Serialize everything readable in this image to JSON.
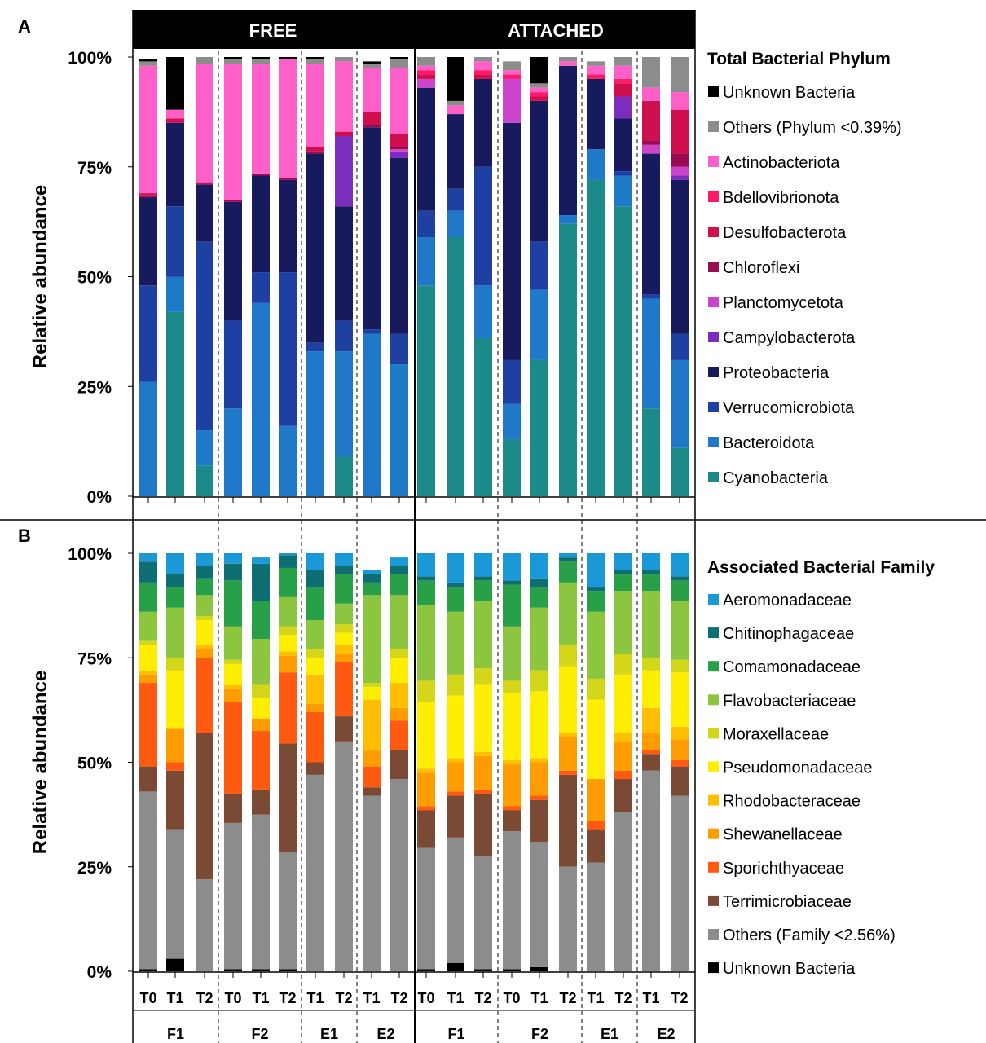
{
  "panels": {
    "a": "A",
    "b": "B"
  },
  "groups": {
    "free": "FREE",
    "attached": "ATTACHED"
  },
  "y_ticks": [
    "0%",
    "25%",
    "50%",
    "75%",
    "100%"
  ],
  "ylabel": "Relative abundance",
  "colors": {
    "unknown": "#000000",
    "others": "#8c8c8c",
    "actino": "#ff5fc8",
    "bdello": "#ff1a66",
    "desulfo": "#d0104e",
    "chloro": "#9b0a52",
    "plancto": "#cc44cc",
    "campylo": "#7b2dbe",
    "proteo": "#181a5e",
    "verruco": "#1e40a3",
    "bactero": "#1f78c8",
    "cyano": "#1b8a88",
    "aeromon": "#1a99d6",
    "chitino": "#0e6e72",
    "comamon": "#27a048",
    "flavo": "#8cc63f",
    "moraxell": "#d4d61a",
    "pseudomon": "#ffee00",
    "rhodobac": "#ffbf00",
    "shewan": "#ff9c00",
    "sporich": "#ff5a10",
    "terrimic": "#7a4a35"
  },
  "chart_data": [
    {
      "type": "bar",
      "stacked": true,
      "panel": "A",
      "legend_title": "Total Bacterial Phylum",
      "ylabel": "Relative abundance",
      "ylim": [
        0,
        100
      ],
      "groups": [
        {
          "name": "FREE",
          "subgroups": [
            "F1",
            "F2",
            "E1",
            "E2"
          ]
        },
        {
          "name": "ATTACHED",
          "subgroups": [
            "F1",
            "F2",
            "E1",
            "E2"
          ]
        }
      ],
      "categories": [
        "T0",
        "T1",
        "T2",
        "T0",
        "T1",
        "T2",
        "T1",
        "T2",
        "T1",
        "T2",
        "T0",
        "T1",
        "T2",
        "T0",
        "T1",
        "T2",
        "T1",
        "T2",
        "T1",
        "T2"
      ],
      "subgroup_of_bar": [
        "F1",
        "F1",
        "F1",
        "F2",
        "F2",
        "F2",
        "E1",
        "E1",
        "E2",
        "E2",
        "F1",
        "F1",
        "F1",
        "F2",
        "F2",
        "F2",
        "E1",
        "E1",
        "E2",
        "E2"
      ],
      "series": [
        {
          "name": "Cyanobacteria",
          "color_key": "cyano",
          "values": [
            0,
            42,
            7,
            0,
            0,
            0,
            0,
            9,
            0,
            0,
            48,
            59,
            36,
            13,
            31,
            62,
            72,
            66,
            20,
            11
          ]
        },
        {
          "name": "Bacteroidota",
          "color_key": "bactero",
          "values": [
            26,
            8,
            8,
            20,
            44,
            16,
            33,
            24,
            37,
            30,
            11,
            6,
            12,
            8,
            16,
            2,
            7,
            7,
            25,
            20
          ]
        },
        {
          "name": "Verrucomicrobiota",
          "color_key": "verruco",
          "values": [
            22,
            16,
            43,
            20,
            7,
            35,
            2,
            7,
            1,
            7,
            6,
            5,
            27,
            10,
            11,
            0,
            0,
            1,
            1,
            6
          ]
        },
        {
          "name": "Proteobacteria",
          "color_key": "proteo",
          "values": [
            20,
            19,
            13,
            27,
            22,
            21,
            43,
            26,
            46,
            40,
            28,
            17,
            20,
            54,
            32,
            34,
            16,
            12,
            32,
            35
          ]
        },
        {
          "name": "Campylobacterota",
          "color_key": "campylo",
          "values": [
            0,
            0,
            0,
            0,
            0,
            0,
            0,
            16,
            0,
            1.5,
            0,
            0,
            0,
            0,
            0,
            0,
            0,
            5,
            0,
            1
          ]
        },
        {
          "name": "Planctomycetota",
          "color_key": "plancto",
          "values": [
            0,
            0,
            0,
            0,
            0,
            0,
            0,
            0,
            0,
            0.5,
            2,
            0,
            0,
            10,
            0,
            0,
            0,
            0,
            2,
            2
          ]
        },
        {
          "name": "Chloroflexi",
          "color_key": "chloro",
          "values": [
            0.5,
            0,
            0,
            0.5,
            0.5,
            0.5,
            0.5,
            0,
            0.5,
            0.5,
            0,
            0,
            0,
            0,
            0,
            0,
            0,
            0,
            1,
            3
          ]
        },
        {
          "name": "Desulfobacterota",
          "color_key": "desulfo",
          "values": [
            0.5,
            1,
            0.5,
            0,
            0,
            0,
            1,
            1,
            3,
            3,
            1,
            0,
            1,
            0,
            1,
            0,
            0,
            3,
            9,
            10
          ]
        },
        {
          "name": "Bdellovibrionota",
          "color_key": "bdello",
          "values": [
            0,
            0,
            0,
            0,
            0,
            0,
            0,
            0,
            0,
            0,
            1,
            0,
            1,
            1,
            1,
            0,
            1,
            1,
            0,
            0
          ]
        },
        {
          "name": "Actinobacteriota",
          "color_key": "actino",
          "values": [
            29,
            2,
            27,
            31,
            25,
            27,
            19,
            16,
            10,
            15,
            1,
            2,
            2,
            1,
            1,
            1,
            2,
            3,
            3,
            4
          ]
        },
        {
          "name": "Others (Phylum <0.39%)",
          "color_key": "others",
          "values": [
            1,
            0,
            2,
            1,
            1,
            0,
            1,
            1,
            1,
            2,
            2,
            1,
            1,
            2,
            1,
            1,
            1,
            2,
            7,
            9
          ]
        },
        {
          "name": "Unknown Bacteria",
          "color_key": "unknown",
          "values": [
            0.5,
            12,
            0.5,
            0.5,
            0.5,
            0.5,
            0.5,
            0.5,
            0.5,
            0.5,
            1,
            10,
            0,
            0,
            6,
            0,
            0,
            0,
            0,
            0
          ]
        }
      ],
      "legend_order": [
        "Unknown Bacteria",
        "Others (Phylum <0.39%)",
        "Actinobacteriota",
        "Bdellovibrionota",
        "Desulfobacterota",
        "Chloroflexi",
        "Planctomycetota",
        "Campylobacterota",
        "Proteobacteria",
        "Verrucomicrobiota",
        "Bacteroidota",
        "Cyanobacteria"
      ]
    },
    {
      "type": "bar",
      "stacked": true,
      "panel": "B",
      "legend_title": "Associated Bacterial Family",
      "ylabel": "Relative abundance",
      "ylim": [
        0,
        100
      ],
      "groups": [
        {
          "name": "FREE",
          "subgroups": [
            "F1",
            "F2",
            "E1",
            "E2"
          ]
        },
        {
          "name": "ATTACHED",
          "subgroups": [
            "F1",
            "F2",
            "E1",
            "E2"
          ]
        }
      ],
      "categories": [
        "T0",
        "T1",
        "T2",
        "T0",
        "T1",
        "T2",
        "T1",
        "T2",
        "T1",
        "T2",
        "T0",
        "T1",
        "T2",
        "T0",
        "T1",
        "T2",
        "T1",
        "T2",
        "T1",
        "T2"
      ],
      "subgroup_of_bar": [
        "F1",
        "F1",
        "F1",
        "F2",
        "F2",
        "F2",
        "E1",
        "E1",
        "E2",
        "E2",
        "F1",
        "F1",
        "F1",
        "F2",
        "F2",
        "F2",
        "E1",
        "E1",
        "E2",
        "E2"
      ],
      "series": [
        {
          "name": "Unknown Bacteria",
          "color_key": "unknown",
          "values": [
            0.5,
            3,
            0,
            0.5,
            0.5,
            0.5,
            0,
            0,
            0,
            0,
            0.5,
            2,
            0.5,
            0.5,
            1,
            0,
            0,
            0,
            0,
            0
          ]
        },
        {
          "name": "Others (Family <2.56%)",
          "color_key": "others",
          "values": [
            42.5,
            31,
            22,
            35,
            37,
            28,
            47,
            55,
            42,
            46,
            29,
            30,
            27,
            33,
            30,
            25,
            26,
            38,
            48,
            42
          ]
        },
        {
          "name": "Terrimicrobiaceae",
          "color_key": "terrimic",
          "values": [
            6,
            14,
            35,
            7,
            6,
            26,
            3,
            6,
            2,
            7,
            9,
            10,
            15,
            5,
            10,
            22,
            8,
            8,
            4,
            7
          ]
        },
        {
          "name": "Sporichthyaceae",
          "color_key": "sporich",
          "values": [
            20,
            2,
            18,
            22,
            14,
            17,
            12,
            13,
            5,
            7,
            1,
            1,
            1,
            1,
            1,
            1,
            2,
            2,
            1,
            1.5
          ]
        },
        {
          "name": "Shewanellaceae",
          "color_key": "shewan",
          "values": [
            2,
            8,
            2,
            3,
            3,
            4,
            2,
            2,
            4,
            3,
            8,
            7,
            8,
            10,
            8,
            8,
            10,
            7,
            4,
            5
          ]
        },
        {
          "name": "Rhodobacteraceae",
          "color_key": "rhodobac",
          "values": [
            1,
            0,
            1,
            1,
            0,
            1,
            7,
            2,
            12,
            6,
            1,
            1,
            1,
            1,
            1,
            1,
            0,
            2,
            6,
            3
          ]
        },
        {
          "name": "Pseudomonadaceae",
          "color_key": "pseudomon",
          "values": [
            6,
            14,
            6,
            5,
            5,
            4,
            4,
            3,
            3,
            6,
            16,
            15,
            16,
            16,
            16,
            16,
            19,
            14,
            9,
            13
          ]
        },
        {
          "name": "Moraxellaceae",
          "color_key": "moraxell",
          "values": [
            1,
            3,
            1,
            1,
            3,
            2,
            2,
            2,
            1,
            2,
            5,
            5,
            4,
            3,
            5,
            5,
            5,
            5,
            3,
            3
          ]
        },
        {
          "name": "Flavobacteriaceae",
          "color_key": "flavo",
          "values": [
            7,
            12,
            5,
            8,
            11,
            7,
            7,
            5,
            21,
            13,
            18,
            15,
            16,
            13,
            15,
            15,
            16,
            15,
            16,
            14
          ]
        },
        {
          "name": "Comamonadaceae",
          "color_key": "comamon",
          "values": [
            7,
            5,
            4,
            11,
            9,
            7,
            8,
            7,
            3,
            5,
            6,
            6,
            5,
            10,
            5,
            5,
            5,
            4,
            4,
            5
          ]
        },
        {
          "name": "Chitinophagaceae",
          "color_key": "chitino",
          "values": [
            5,
            3,
            3,
            4,
            9,
            3,
            4,
            2,
            2,
            2,
            1,
            1,
            1,
            1,
            2,
            1,
            1,
            1,
            1,
            1
          ]
        },
        {
          "name": "Aeromonadaceae",
          "color_key": "aeromon",
          "values": [
            2,
            5,
            3,
            2.5,
            1.5,
            0.5,
            4,
            3,
            1,
            2,
            6,
            7,
            6,
            6.5,
            6,
            1,
            8,
            4,
            4,
            5.5
          ]
        }
      ],
      "legend_order": [
        "Aeromonadaceae",
        "Chitinophagaceae",
        "Comamonadaceae",
        "Flavobacteriaceae",
        "Moraxellaceae",
        "Pseudomonadaceae",
        "Rhodobacteraceae",
        "Shewanellaceae",
        "Sporichthyaceae",
        "Terrimicrobiaceae",
        "Others (Family <2.56%)",
        "Unknown Bacteria"
      ]
    }
  ]
}
